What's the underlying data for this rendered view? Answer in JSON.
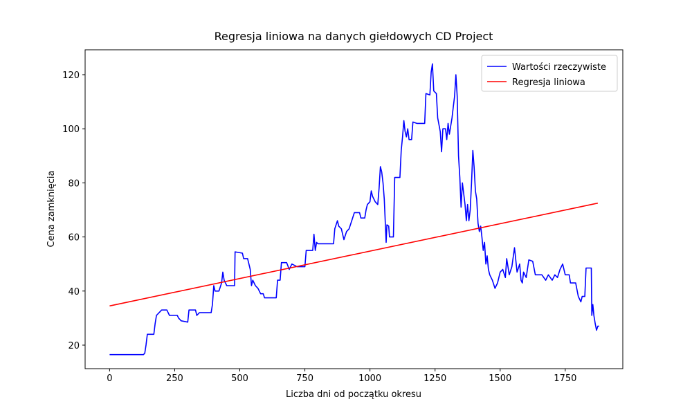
{
  "chart_data": {
    "type": "line",
    "title": "Regresja liniowa na danych giełdowych CD Project",
    "x_label": "Liczba dni od początku okresu",
    "y_label": "Cena zamknięcia",
    "xlim": [
      -94,
      1971
    ],
    "ylim": [
      11.3,
      129.2
    ],
    "xticks": [
      0,
      250,
      500,
      750,
      1000,
      1250,
      1500,
      1750
    ],
    "yticks": [
      20,
      40,
      60,
      80,
      100,
      120
    ],
    "legend": "upper right",
    "series": [
      {
        "name": "Wartości rzeczywiste",
        "color": "#0000ff",
        "x": [
          0,
          130,
          135,
          140,
          145,
          170,
          175,
          180,
          190,
          200,
          220,
          230,
          260,
          265,
          275,
          300,
          305,
          330,
          335,
          345,
          360,
          390,
          395,
          400,
          405,
          420,
          430,
          435,
          440,
          450,
          480,
          482,
          510,
          515,
          530,
          540,
          545,
          550,
          560,
          570,
          580,
          590,
          595,
          640,
          645,
          655,
          660,
          680,
          690,
          700,
          720,
          750,
          755,
          780,
          785,
          790,
          795,
          800,
          860,
          865,
          875,
          880,
          890,
          900,
          910,
          920,
          930,
          940,
          960,
          965,
          980,
          985,
          990,
          1000,
          1005,
          1010,
          1020,
          1030,
          1035,
          1040,
          1045,
          1050,
          1055,
          1062,
          1065,
          1072,
          1075,
          1090,
          1095,
          1115,
          1120,
          1125,
          1130,
          1135,
          1140,
          1145,
          1150,
          1160,
          1165,
          1180,
          1210,
          1215,
          1230,
          1235,
          1240,
          1245,
          1255,
          1260,
          1270,
          1275,
          1280,
          1290,
          1295,
          1300,
          1305,
          1315,
          1320,
          1325,
          1330,
          1335,
          1340,
          1345,
          1350,
          1355,
          1360,
          1365,
          1370,
          1375,
          1380,
          1385,
          1390,
          1395,
          1400,
          1405,
          1410,
          1415,
          1420,
          1425,
          1430,
          1435,
          1440,
          1445,
          1450,
          1455,
          1460,
          1470,
          1480,
          1490,
          1500,
          1510,
          1520,
          1525,
          1535,
          1545,
          1555,
          1565,
          1575,
          1580,
          1585,
          1590,
          1600,
          1610,
          1625,
          1635,
          1650,
          1660,
          1675,
          1685,
          1700,
          1710,
          1720,
          1730,
          1740,
          1750,
          1765,
          1770,
          1790,
          1800,
          1810,
          1815,
          1825,
          1830,
          1850,
          1852,
          1856,
          1860,
          1865,
          1870,
          1875,
          1880
        ],
        "values": [
          16.5,
          16.5,
          17,
          20,
          24,
          24,
          28,
          31,
          32,
          33,
          33,
          31,
          31,
          30,
          29,
          28.5,
          33,
          33,
          31,
          32,
          32,
          32,
          35,
          42,
          40,
          40,
          43,
          47,
          44,
          42,
          42,
          54.5,
          54,
          52,
          52,
          48,
          42,
          44,
          42,
          41,
          39,
          39,
          37.5,
          37.5,
          44,
          44,
          50.5,
          50.5,
          48,
          50,
          49,
          49,
          55,
          55,
          61,
          55,
          58,
          57.5,
          57.5,
          63,
          66,
          64,
          63,
          59,
          62,
          63,
          66,
          69,
          69,
          67,
          67,
          70,
          72,
          73,
          77,
          75,
          73,
          72,
          78,
          86,
          84,
          80,
          74,
          58,
          64.5,
          64,
          60,
          60,
          82,
          82,
          92,
          97,
          103,
          99,
          97,
          100,
          96,
          96,
          102.5,
          102,
          102,
          113,
          112.5,
          121,
          124,
          114,
          113,
          104,
          99,
          91.5,
          100,
          100,
          96,
          102,
          98,
          104,
          108,
          112,
          120,
          112,
          90,
          82,
          71,
          80,
          76,
          72,
          66,
          72,
          66,
          70,
          80,
          92,
          86,
          77,
          74,
          65,
          62,
          64,
          60,
          55,
          58,
          50,
          53,
          48,
          46,
          44,
          41,
          43,
          47,
          48,
          45,
          52,
          46,
          49,
          56,
          47,
          50,
          44,
          43,
          47,
          45,
          51.5,
          51,
          46,
          46,
          46,
          44,
          46,
          44,
          46,
          45,
          48,
          50,
          46,
          46,
          43,
          43,
          38,
          36,
          38,
          38,
          48.5,
          48.5,
          31,
          35,
          31,
          28,
          25.5,
          27,
          27
        ]
      },
      {
        "name": "Regresja liniowa",
        "color": "#ff0000",
        "x": [
          0,
          1875
        ],
        "values": [
          34.5,
          72.5
        ]
      }
    ]
  }
}
